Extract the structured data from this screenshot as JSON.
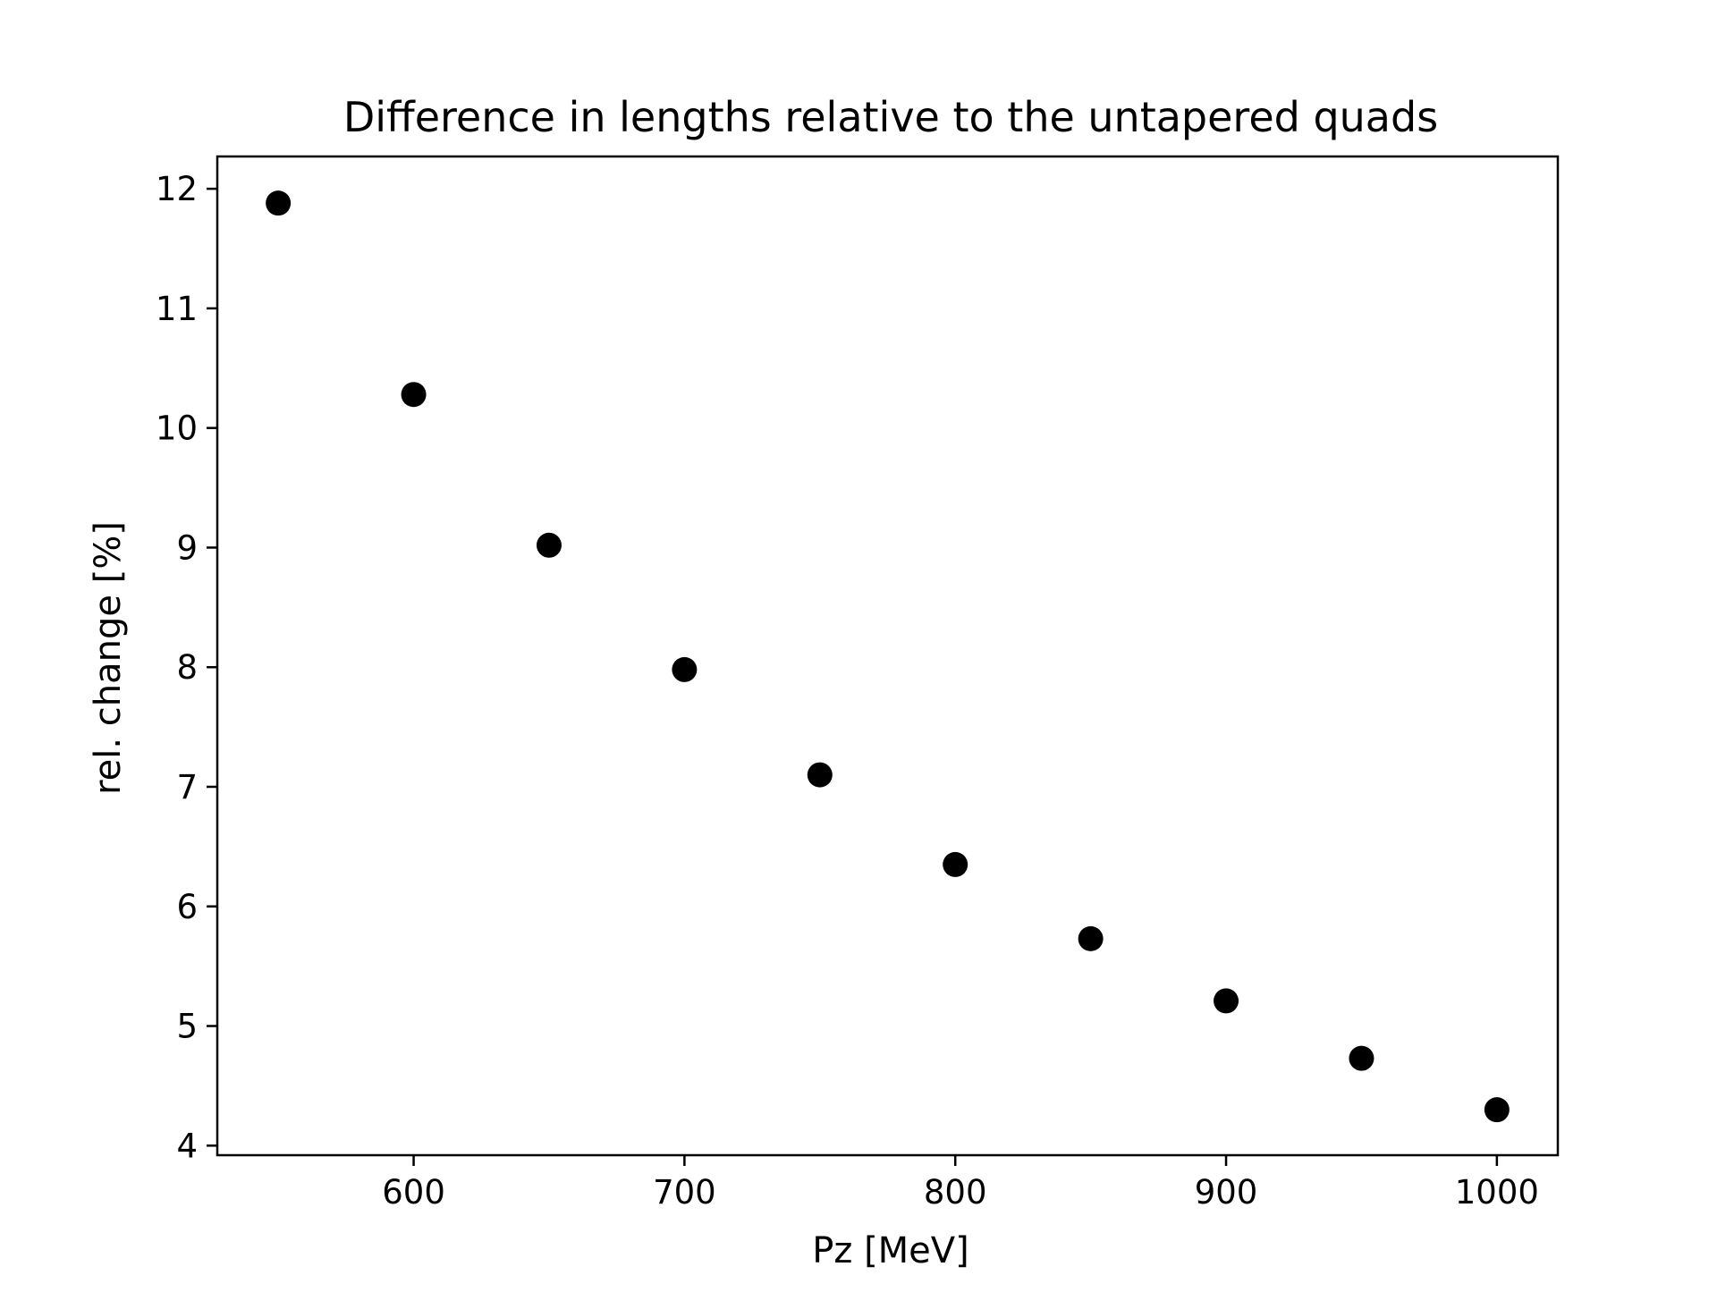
{
  "chart_data": {
    "type": "scatter",
    "title": "Difference in lengths relative to the untapered quads",
    "xlabel": "Pz [MeV]",
    "ylabel": "rel. change [%]",
    "xlim": [
      527.5,
      1022.5
    ],
    "ylim": [
      3.92,
      12.27
    ],
    "xticks": [
      600,
      700,
      800,
      900,
      1000
    ],
    "yticks": [
      4,
      5,
      6,
      7,
      8,
      9,
      10,
      11,
      12
    ],
    "grid": false,
    "marker_color": "#000000",
    "series": [
      {
        "x": [
          550,
          600,
          650,
          700,
          750,
          800,
          850,
          900,
          950,
          1000
        ],
        "y": [
          11.88,
          10.28,
          9.02,
          7.98,
          7.1,
          6.35,
          5.73,
          5.21,
          4.73,
          4.3
        ]
      }
    ]
  }
}
